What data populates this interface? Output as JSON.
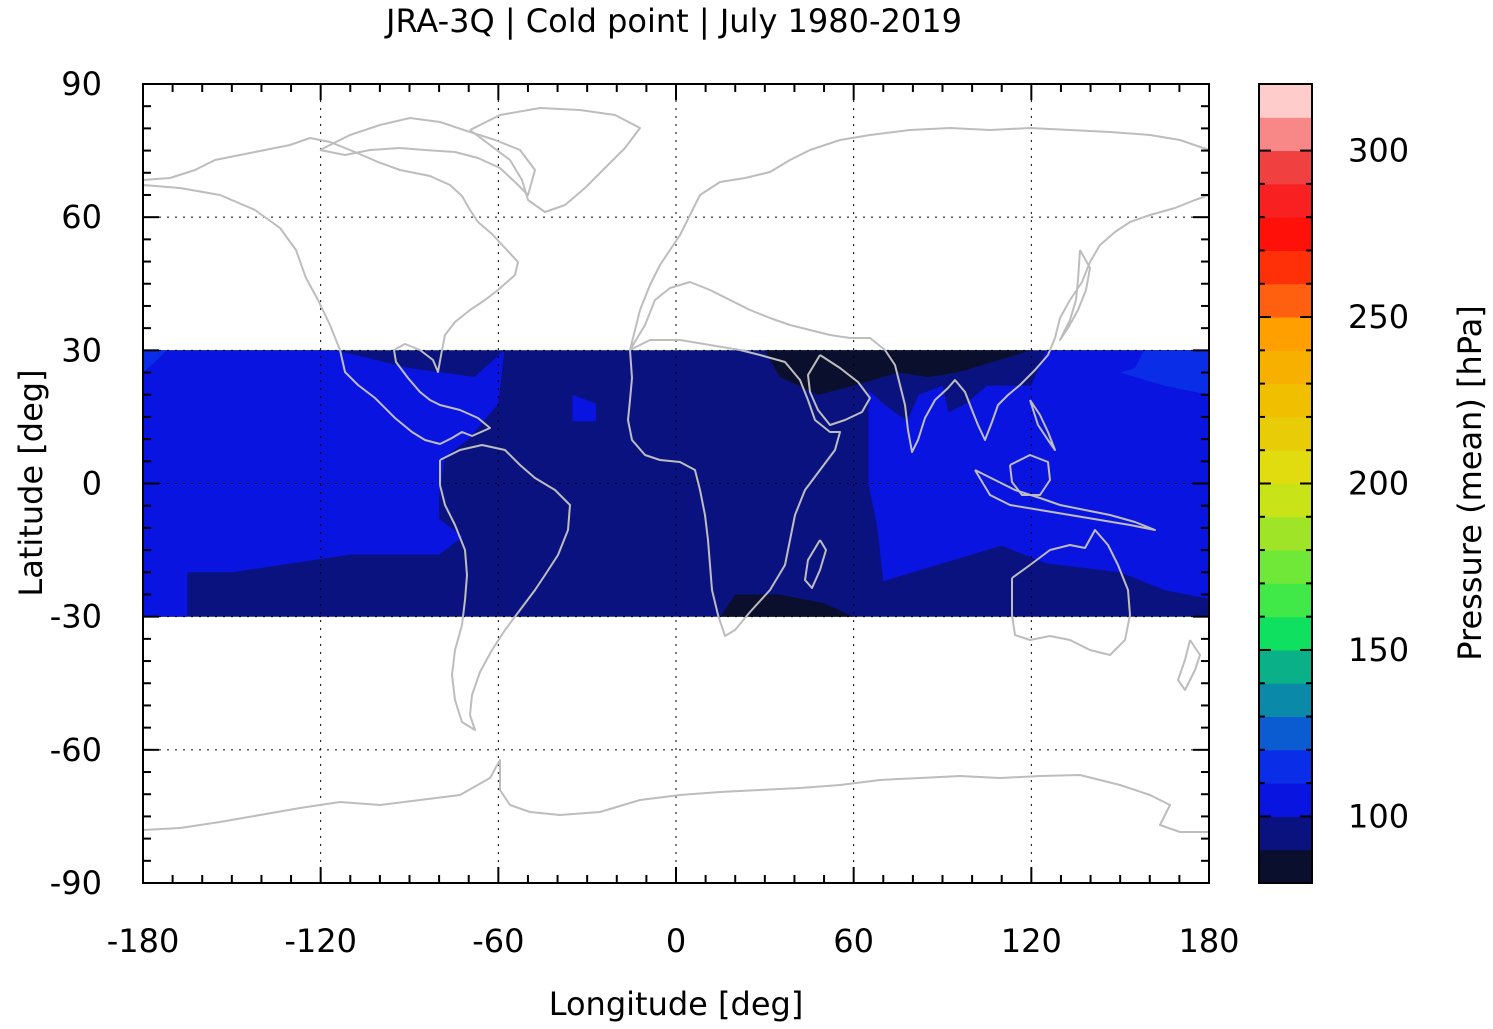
{
  "title": "JRA-3Q | Cold point | July 1980-2019",
  "x_axis": {
    "label": "Longitude [deg]",
    "min": -180,
    "max": 180,
    "ticks": [
      "-180",
      "-120",
      "-60",
      "0",
      "60",
      "120",
      "180"
    ]
  },
  "y_axis": {
    "label": "Latitude [deg]",
    "min": -90,
    "max": 90,
    "ticks": [
      "90",
      "60",
      "30",
      "0",
      "-30",
      "-60",
      "-90"
    ]
  },
  "colorbar": {
    "label": "Pressure (mean) [hPa]",
    "min": 80,
    "max": 320,
    "ticks": [
      "300",
      "250",
      "200",
      "150",
      "100"
    ],
    "levels": [
      {
        "from": 80,
        "to": 90,
        "color": "#0b0f2e"
      },
      {
        "from": 90,
        "to": 100,
        "color": "#0a1280"
      },
      {
        "from": 100,
        "to": 110,
        "color": "#0a14e0"
      },
      {
        "from": 110,
        "to": 120,
        "color": "#0a2ee8"
      },
      {
        "from": 120,
        "to": 130,
        "color": "#0a5cd0"
      },
      {
        "from": 130,
        "to": 140,
        "color": "#0a8aa8"
      },
      {
        "from": 140,
        "to": 150,
        "color": "#0ab088"
      },
      {
        "from": 150,
        "to": 160,
        "color": "#10e060"
      },
      {
        "from": 160,
        "to": 170,
        "color": "#40e848"
      },
      {
        "from": 170,
        "to": 180,
        "color": "#70e838"
      },
      {
        "from": 180,
        "to": 190,
        "color": "#a0e428"
      },
      {
        "from": 190,
        "to": 200,
        "color": "#c8e418"
      },
      {
        "from": 200,
        "to": 210,
        "color": "#e0dc10"
      },
      {
        "from": 210,
        "to": 220,
        "color": "#e8cc08"
      },
      {
        "from": 220,
        "to": 230,
        "color": "#f0c000"
      },
      {
        "from": 230,
        "to": 240,
        "color": "#f8b000"
      },
      {
        "from": 240,
        "to": 250,
        "color": "#ffa000"
      },
      {
        "from": 250,
        "to": 260,
        "color": "#ff6010"
      },
      {
        "from": 260,
        "to": 270,
        "color": "#ff3008"
      },
      {
        "from": 270,
        "to": 280,
        "color": "#ff1008"
      },
      {
        "from": 280,
        "to": 290,
        "color": "#f82020"
      },
      {
        "from": 290,
        "to": 300,
        "color": "#f04040"
      },
      {
        "from": 300,
        "to": 310,
        "color": "#f88888"
      },
      {
        "from": 310,
        "to": 320,
        "color": "#ffcccc"
      }
    ]
  },
  "data_region": {
    "lat_min": -30,
    "lat_max": 30
  },
  "chart_data": {
    "type": "heatmap",
    "title": "JRA-3Q | Cold point | July 1980-2019",
    "xlabel": "Longitude [deg]",
    "ylabel": "Latitude [deg]",
    "xlim": [
      -180,
      180
    ],
    "ylim": [
      -90,
      90
    ],
    "colorbar_label": "Pressure (mean) [hPa]",
    "colorbar_range": [
      80,
      320
    ],
    "grid": true,
    "regions": [
      {
        "value": 95,
        "color": "#0a1280",
        "polygon": [
          [
            -180,
            30
          ],
          [
            180,
            30
          ],
          [
            180,
            -30
          ],
          [
            -180,
            -30
          ]
        ]
      },
      {
        "value": 105,
        "color": "#0a14e0",
        "polygon": [
          [
            -180,
            30
          ],
          [
            -115,
            30
          ],
          [
            -90,
            26
          ],
          [
            -68,
            24
          ],
          [
            -58,
            30
          ],
          [
            -60,
            18
          ],
          [
            -70,
            10
          ],
          [
            -78,
            6
          ],
          [
            -80,
            -3
          ],
          [
            -80,
            -8
          ],
          [
            -72,
            -12
          ],
          [
            -80,
            -16
          ],
          [
            -110,
            -16
          ],
          [
            -150,
            -20
          ],
          [
            -165,
            -20
          ],
          [
            -165,
            -30
          ],
          [
            -180,
            -30
          ]
        ]
      },
      {
        "value": 105,
        "color": "#0a14e0",
        "polygon": [
          [
            -35,
            20
          ],
          [
            -27,
            18
          ],
          [
            -27,
            14
          ],
          [
            -35,
            14
          ]
        ]
      },
      {
        "value": 105,
        "color": "#0a14e0",
        "polygon": [
          [
            65,
            21
          ],
          [
            70,
            18
          ],
          [
            78,
            14
          ],
          [
            82,
            20
          ],
          [
            90,
            22
          ],
          [
            92,
            16
          ],
          [
            98,
            18
          ],
          [
            105,
            22
          ],
          [
            120,
            22
          ],
          [
            125,
            30
          ],
          [
            180,
            30
          ],
          [
            180,
            -26
          ],
          [
            165,
            -24
          ],
          [
            150,
            -20
          ],
          [
            125,
            -18
          ],
          [
            110,
            -14
          ],
          [
            100,
            -16
          ],
          [
            80,
            -20
          ],
          [
            70,
            -22
          ],
          [
            68,
            -10
          ],
          [
            65,
            0
          ],
          [
            65,
            10
          ]
        ]
      },
      {
        "value": 112,
        "color": "#0a2ee8",
        "polygon": [
          [
            150,
            25
          ],
          [
            155,
            26
          ],
          [
            158,
            30
          ],
          [
            180,
            30
          ],
          [
            180,
            20
          ],
          [
            165,
            22
          ]
        ]
      },
      {
        "value": 112,
        "color": "#0a2ee8",
        "polygon": [
          [
            -180,
            25
          ],
          [
            -175,
            28
          ],
          [
            -172,
            30
          ],
          [
            -180,
            30
          ]
        ]
      },
      {
        "value": 85,
        "color": "#0b0f2e",
        "polygon": [
          [
            15,
            -30
          ],
          [
            20,
            -25
          ],
          [
            35,
            -25
          ],
          [
            50,
            -27
          ],
          [
            60,
            -30
          ]
        ]
      },
      {
        "value": 85,
        "color": "#0b0f2e",
        "polygon": [
          [
            30,
            30
          ],
          [
            35,
            24
          ],
          [
            48,
            20
          ],
          [
            60,
            22
          ],
          [
            75,
            25
          ],
          [
            85,
            24
          ],
          [
            95,
            25
          ],
          [
            110,
            28
          ],
          [
            120,
            30
          ]
        ]
      }
    ]
  }
}
